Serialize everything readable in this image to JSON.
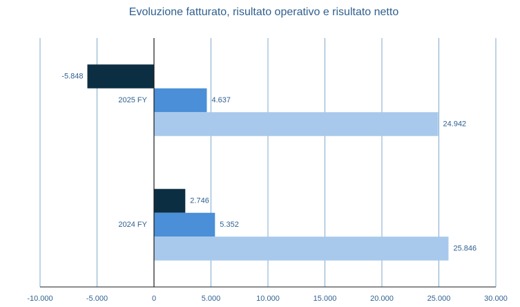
{
  "chart_data": {
    "type": "bar",
    "orientation": "horizontal",
    "title": "Evoluzione fatturato, risultato operativo e risultato netto",
    "categories": [
      "2025 FY",
      "2024 FY"
    ],
    "series": [
      {
        "color": "#0c2e42",
        "values": [
          -5848,
          2746
        ],
        "value_labels": [
          "-5.848",
          "2.746"
        ]
      },
      {
        "color": "#4a8fd8",
        "values": [
          4637,
          5352
        ],
        "value_labels": [
          "4.637",
          "5.352"
        ]
      },
      {
        "color": "#a8c9ec",
        "values": [
          24942,
          25846
        ],
        "value_labels": [
          "24.942",
          "25.846"
        ]
      }
    ],
    "xlim": [
      -10000,
      30000
    ],
    "xticks": [
      {
        "value": -10000,
        "label": "-10.000"
      },
      {
        "value": -5000,
        "label": "-5.000"
      },
      0,
      {
        "value": 5000,
        "label": "5.000"
      },
      {
        "value": 10000,
        "label": "10.000"
      },
      {
        "value": 15000,
        "label": "15.000"
      },
      {
        "value": 20000,
        "label": "20.000"
      },
      {
        "value": 25000,
        "label": "25.000"
      },
      {
        "value": 30000,
        "label": "30.000"
      }
    ],
    "grid": true
  }
}
